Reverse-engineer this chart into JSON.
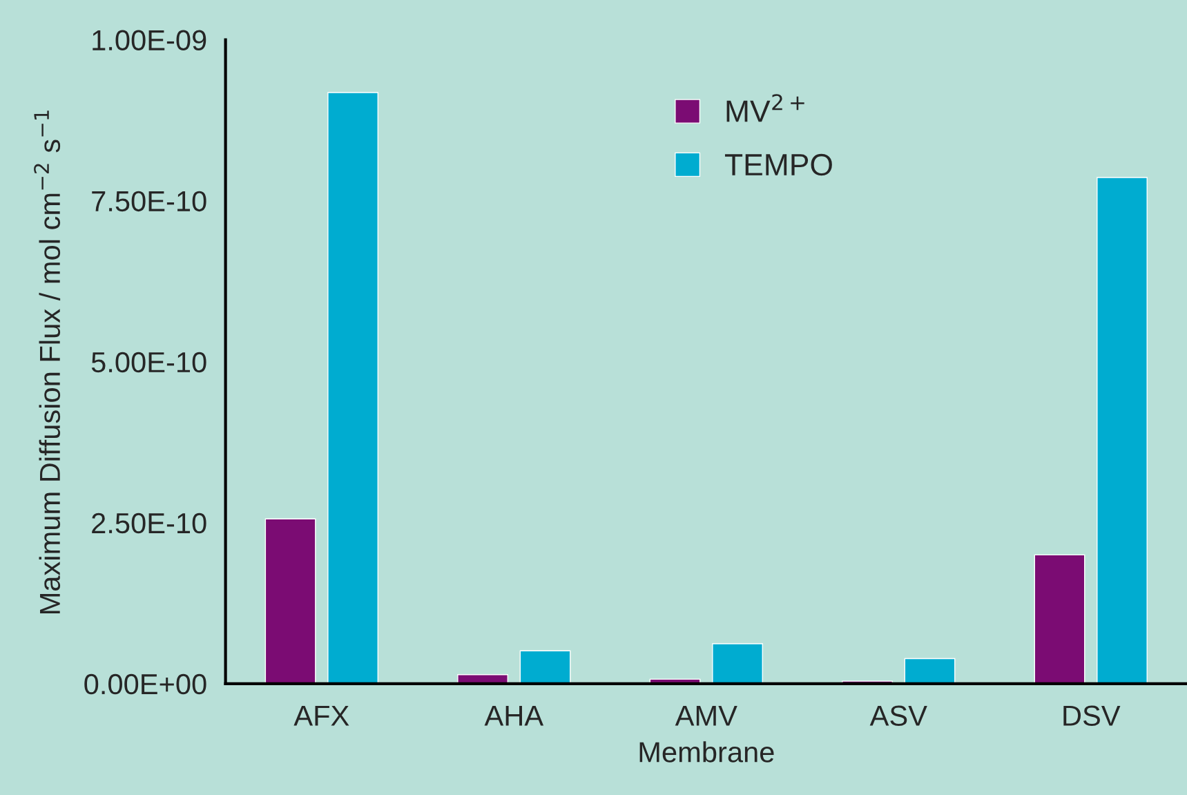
{
  "chart_data": {
    "type": "bar",
    "xlabel": "Membrane",
    "ylabel": "Maximum Diffusion Flux / mol cm$^{−2}$ s$^{−1}$",
    "categories": [
      "AFX",
      "AHA",
      "AMV",
      "ASV",
      "DSV"
    ],
    "series": [
      {
        "name": "MV$^{2+}$",
        "color": "#7b0c73",
        "values": [
          2.56e-10,
          1.4e-11,
          7e-12,
          4e-12,
          2e-10
        ]
      },
      {
        "name": "TEMPO",
        "color": "#00acd0",
        "values": [
          9.18e-10,
          5.1e-11,
          6.2e-11,
          3.9e-11,
          7.86e-10
        ]
      }
    ],
    "ylim": [
      0,
      1e-09
    ],
    "yticks": [
      {
        "value": 0,
        "label": "0.00E+00"
      },
      {
        "value": 2.5e-10,
        "label": "2.50E-10"
      },
      {
        "value": 5e-10,
        "label": "5.00E-10"
      },
      {
        "value": 7.5e-10,
        "label": "7.50E-10"
      },
      {
        "value": 1e-09,
        "label": "1.00E-09"
      }
    ],
    "grid": false,
    "legend": "top"
  }
}
